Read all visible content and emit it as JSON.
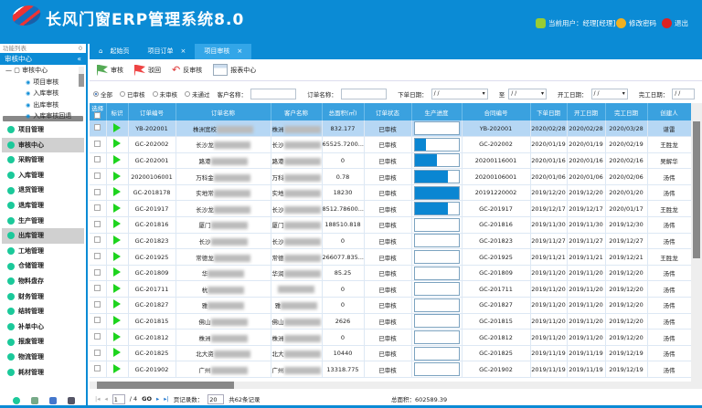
{
  "header": {
    "title": "长风门窗ERP管理系统8.0",
    "current_user": "当前用户：经理[经理]",
    "change_password": "修改密码",
    "logout": "退出"
  },
  "sidebar": {
    "list_label": "功能列表",
    "pin": "0",
    "section": "审核中心",
    "collapse": "«",
    "tree": {
      "root": "审核中心",
      "items": [
        "项目审核",
        "入库审核",
        "出库审核",
        "入库审核回退"
      ]
    },
    "modules": [
      "项目管理",
      "审核中心",
      "采购管理",
      "入库管理",
      "退货管理",
      "退库管理",
      "生产管理",
      "出库管理",
      "工地管理",
      "仓储管理",
      "物料盘存",
      "财务管理",
      "结转管理",
      "补单中心",
      "报废管理",
      "物流管理",
      "耗材管理"
    ],
    "selected_modules": [
      "审核中心",
      "出库管理"
    ]
  },
  "tabs": [
    {
      "label": "起始页",
      "closable": false
    },
    {
      "label": "项目订单",
      "closable": true
    },
    {
      "label": "项目审核",
      "closable": true,
      "active": true
    }
  ],
  "toolbar": {
    "approve": "审核",
    "reject": "驳回",
    "unapprove": "反审核",
    "reports": "报表中心"
  },
  "filters": {
    "status_options": [
      "全部",
      "已审核",
      "未审核",
      "未通过"
    ],
    "selected": "全部",
    "customer_label": "客户名称：",
    "customer_value": "",
    "order_label": "订单名称：",
    "order_value": "",
    "order_date_label": "下单日期：",
    "to_label": "至",
    "start_date_label": "开工日期：",
    "finish_date_label": "完工日期：",
    "date_placeholder": "/ /"
  },
  "table": {
    "columns": [
      "选择",
      "标识",
      "订单编号",
      "订单名称",
      "客户名称",
      "总面积(㎡)",
      "订单状态",
      "生产进度",
      "合同编号",
      "下单日期",
      "开工日期",
      "完工日期",
      "创建人"
    ],
    "rows": [
      {
        "id": "YB-202001",
        "name": "株洲宽校",
        "customer": "株洲",
        "area": "832.177",
        "status": "已审核",
        "progress": 0,
        "contract": "YB-202001",
        "order": "2020/02/28",
        "start": "2020/02/28",
        "finish": "2020/03/28",
        "creator": "谌雷"
      },
      {
        "id": "GC-202002",
        "name": "长沙龙",
        "customer": "长沙",
        "area": "65525.7200...",
        "status": "已审核",
        "progress": 25,
        "contract": "GC-202002",
        "order": "2020/01/19",
        "start": "2020/01/19",
        "finish": "2020/02/19",
        "creator": "王胜龙"
      },
      {
        "id": "GC-202001",
        "name": "路港",
        "customer": "路港",
        "area": "0",
        "status": "已审核",
        "progress": 50,
        "contract": "20200116001",
        "order": "2020/01/16",
        "start": "2020/01/16",
        "finish": "2020/02/16",
        "creator": "吴解华"
      },
      {
        "id": "20200106001",
        "name": "万科金",
        "customer": "万科",
        "area": "0.78",
        "status": "已审核",
        "progress": 75,
        "contract": "20200106001",
        "order": "2020/01/06",
        "start": "2020/01/06",
        "finish": "2020/02/06",
        "creator": "汤伟"
      },
      {
        "id": "GC-2018178",
        "name": "实地常",
        "customer": "实地",
        "area": "18230",
        "status": "已审核",
        "progress": 100,
        "contract": "20191220002",
        "order": "2019/12/20",
        "start": "2019/12/20",
        "finish": "2020/01/20",
        "creator": "汤伟"
      },
      {
        "id": "GC-201917",
        "name": "长沙龙",
        "customer": "长沙",
        "area": "8512.78600...",
        "status": "已审核",
        "progress": 75,
        "contract": "GC-201917",
        "order": "2019/12/17",
        "start": "2019/12/17",
        "finish": "2020/01/17",
        "creator": "王胜龙"
      },
      {
        "id": "GC-201816",
        "name": "厦门",
        "customer": "厦门",
        "area": "188510.818",
        "status": "已审核",
        "progress": 0,
        "contract": "GC-201816",
        "order": "2019/11/30",
        "start": "2019/11/30",
        "finish": "2019/12/30",
        "creator": "汤伟"
      },
      {
        "id": "GC-201823",
        "name": "长沙",
        "customer": "长沙",
        "area": "0",
        "status": "已审核",
        "progress": 0,
        "contract": "GC-201823",
        "order": "2019/11/27",
        "start": "2019/11/27",
        "finish": "2019/12/27",
        "creator": "汤伟"
      },
      {
        "id": "GC-201925",
        "name": "常德龙",
        "customer": "常德",
        "area": "266077.835...",
        "status": "已审核",
        "progress": 0,
        "contract": "GC-201925",
        "order": "2019/11/21",
        "start": "2019/11/21",
        "finish": "2019/12/21",
        "creator": "王胜龙"
      },
      {
        "id": "GC-201809",
        "name": "华",
        "customer": "华润",
        "area": "85.25",
        "status": "已审核",
        "progress": 0,
        "contract": "GC-201809",
        "order": "2019/11/20",
        "start": "2019/11/20",
        "finish": "2019/12/20",
        "creator": "汤伟"
      },
      {
        "id": "GC-201711",
        "name": "杭",
        "customer": "",
        "area": "0",
        "status": "已审核",
        "progress": 0,
        "contract": "GC-201711",
        "order": "2019/11/20",
        "start": "2019/11/20",
        "finish": "2019/12/20",
        "creator": "汤伟"
      },
      {
        "id": "GC-201827",
        "name": "雅",
        "customer": "雅",
        "area": "0",
        "status": "已审核",
        "progress": 0,
        "contract": "GC-201827",
        "order": "2019/11/20",
        "start": "2019/11/20",
        "finish": "2019/12/20",
        "creator": "汤伟"
      },
      {
        "id": "GC-201815",
        "name": "佛山",
        "customer": "佛山",
        "area": "2626",
        "status": "已审核",
        "progress": 0,
        "contract": "GC-201815",
        "order": "2019/11/20",
        "start": "2019/11/20",
        "finish": "2019/12/20",
        "creator": "汤伟"
      },
      {
        "id": "GC-201812",
        "name": "株洲",
        "customer": "株洲",
        "area": "0",
        "status": "已审核",
        "progress": 0,
        "contract": "GC-201812",
        "order": "2019/11/20",
        "start": "2019/11/20",
        "finish": "2019/12/20",
        "creator": "汤伟"
      },
      {
        "id": "GC-201825",
        "name": "北大资",
        "customer": "北大",
        "area": "10440",
        "status": "已审核",
        "progress": 0,
        "contract": "GC-201825",
        "order": "2019/11/19",
        "start": "2019/11/19",
        "finish": "2019/12/19",
        "creator": "汤伟"
      },
      {
        "id": "GC-201902",
        "name": "广州",
        "customer": "广州",
        "area": "13318.775",
        "status": "已审核",
        "progress": 0,
        "contract": "GC-201902",
        "order": "2019/11/19",
        "start": "2019/11/19",
        "finish": "2019/12/19",
        "creator": "汤伟"
      }
    ]
  },
  "pager": {
    "page": "1",
    "of": "/ 4",
    "go": "GO",
    "page_size_label": "页记录数：",
    "page_size": "20",
    "total_records": "共62条记录"
  },
  "summary": {
    "total_area": "总面积：602589.39"
  },
  "colors": {
    "brand": "#0b8bd5",
    "header_row": "#3aa1df",
    "selected_row": "#b6d7f4",
    "progress": "#0a86d2",
    "flag_icon": "#1ed41e"
  }
}
